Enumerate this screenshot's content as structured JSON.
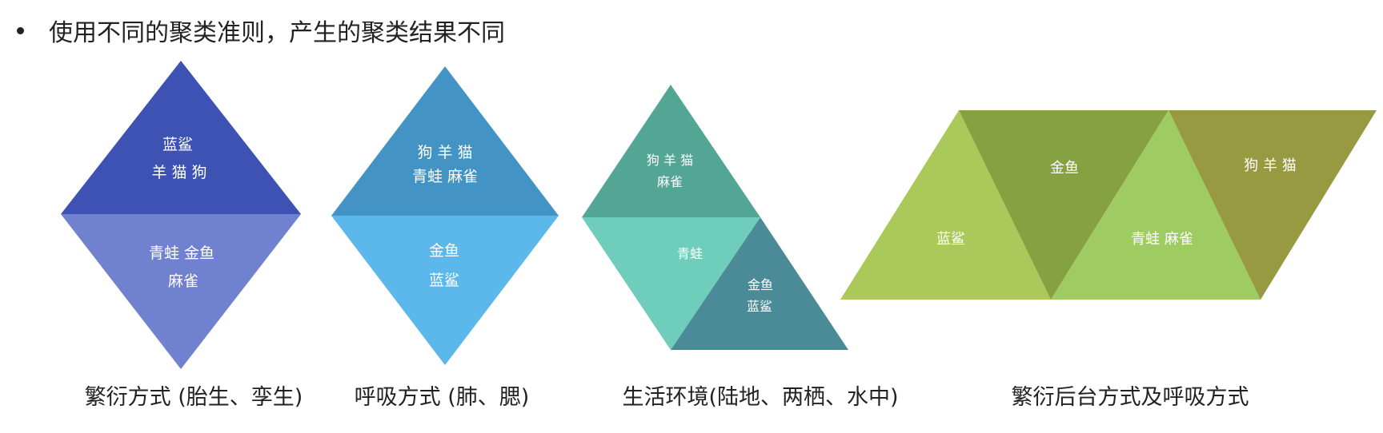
{
  "heading": "使用不同的聚类准则，产生的聚类结果不同",
  "colors": {
    "d1_top": "#3d52b2",
    "d1_bottom": "#7081cf",
    "d2_top": "#4393c4",
    "d2_bottom": "#5cb8ea",
    "d3_top": "#52a693",
    "d3_left": "#6fcdbb",
    "d3_right": "#4a8b97",
    "d4_a": "#abc85a",
    "d4_b": "#85a141",
    "d4_c": "#9fcc62",
    "d4_d": "#979a40"
  },
  "diagrams": [
    {
      "caption": "繁衍方式 (胎生、孪生)",
      "regions": [
        {
          "lines": [
            "蓝鲨",
            "羊 猫 狗"
          ]
        },
        {
          "lines": [
            "青蛙 金鱼",
            "麻雀"
          ]
        }
      ]
    },
    {
      "caption": "呼吸方式 (肺、腮)",
      "regions": [
        {
          "lines": [
            "狗 羊 猫",
            "青蛙 麻雀"
          ]
        },
        {
          "lines": [
            "金鱼",
            "蓝鲨"
          ]
        }
      ]
    },
    {
      "caption": "生活环境(陆地、两栖、水中)",
      "regions": [
        {
          "lines": [
            "狗 羊 猫",
            "麻雀"
          ]
        },
        {
          "lines": [
            "青蛙"
          ]
        },
        {
          "lines": [
            "金鱼",
            "蓝鲨"
          ]
        }
      ]
    },
    {
      "caption": "繁衍后台方式及呼吸方式",
      "regions": [
        {
          "lines": [
            "蓝鲨"
          ]
        },
        {
          "lines": [
            "金鱼"
          ]
        },
        {
          "lines": [
            "青蛙 麻雀"
          ]
        },
        {
          "lines": [
            "狗 羊 猫"
          ]
        }
      ]
    }
  ]
}
